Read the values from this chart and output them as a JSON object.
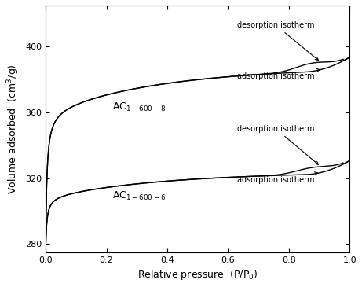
{
  "xlabel": "Relative pressure  (P/P$_0$)",
  "ylabel": "Volume adsorbed  (cm$^3$/g)",
  "xlim": [
    0.0,
    1.0
  ],
  "ylim": [
    275,
    425
  ],
  "yticks": [
    280,
    320,
    360,
    400
  ],
  "xticks": [
    0.0,
    0.2,
    0.4,
    0.6,
    0.8,
    1.0
  ],
  "label_AC8": "AC$_{1-600-8}$",
  "label_AC6": "AC$_{1-600-6}$",
  "ann_des_up": "desorption isotherm",
  "ann_ads_up": "adsorption isotherm",
  "ann_des_lo": "desorption isotherm",
  "ann_ads_lo": "adsorption isotherm",
  "line_color": "black",
  "bg_color": "white",
  "xlabel_fontsize": 9,
  "ylabel_fontsize": 9,
  "tick_fontsize": 8,
  "ann_fontsize": 7,
  "label_fontsize": 9
}
